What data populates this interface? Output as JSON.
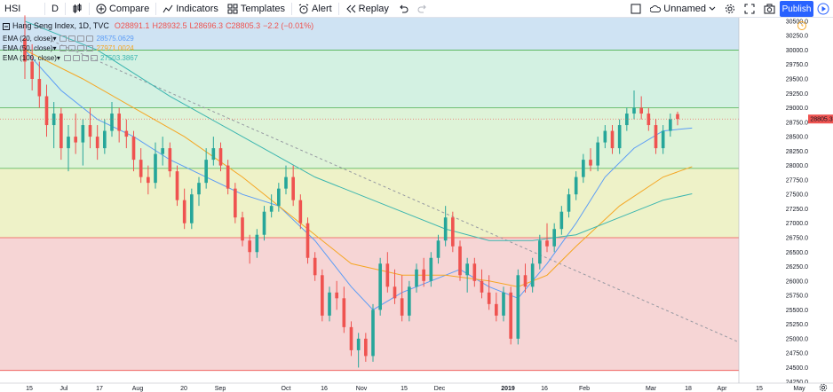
{
  "toolbar": {
    "symbol": "HSI",
    "interval": "D",
    "compare": "Compare",
    "indicators": "Indicators",
    "templates": "Templates",
    "alert": "Alert",
    "replay": "Replay",
    "layout_name": "Unnamed",
    "publish": "Publish"
  },
  "legend": {
    "title": "Hang Seng Index, 1D, TVC",
    "open": "O28891.1",
    "high": "H28932.5",
    "low": "L28696.3",
    "close": "C28805.3",
    "change": "−2.2 (−0.01%)",
    "change_color": "#ef5350",
    "indicators": [
      {
        "label": "EMA (20, close)",
        "value": "28575.0629",
        "color": "#5b9cf6"
      },
      {
        "label": "EMA (50, close)",
        "value": "27971.0024",
        "color": "#f5a623"
      },
      {
        "label": "EMA (100, close)",
        "value": "27503.3867",
        "color": "#3cb6b0"
      }
    ]
  },
  "price_axis": {
    "labels": [
      "30500.0",
      "30250.0",
      "30000.0",
      "29750.0",
      "29500.0",
      "29250.0",
      "29000.0",
      "28750.0",
      "28500.0",
      "28250.0",
      "28000.0",
      "27750.0",
      "27500.0",
      "27250.0",
      "27000.0",
      "26750.0",
      "26500.0",
      "26250.0",
      "26000.0",
      "25750.0",
      "25500.0",
      "25250.0",
      "25000.0",
      "24750.0",
      "24500.0",
      "24250.0"
    ],
    "current_price": "28805.3",
    "current_price_color": "#ef5350"
  },
  "time_axis": {
    "labels": [
      "15",
      "Jul",
      "17",
      "Aug",
      "20",
      "Sep",
      "Oct",
      "16",
      "Nov",
      "15",
      "Dec",
      "2019",
      "16",
      "Feb",
      "Mar",
      "18",
      "Apr",
      "15",
      "May"
    ]
  },
  "chart_data": {
    "type": "candlestick",
    "symbol": "HSI",
    "y_range": [
      24250,
      30700
    ],
    "zones": [
      {
        "from": 30000,
        "to": 30700,
        "color": "#cfe3f3"
      },
      {
        "from": 29000,
        "to": 30000,
        "color": "#d3f1e2"
      },
      {
        "from": 27950,
        "to": 29000,
        "color": "#def3d8"
      },
      {
        "from": 26750,
        "to": 27950,
        "color": "#eef2c8"
      },
      {
        "from": 24450,
        "to": 26750,
        "color": "#f6d5d5"
      }
    ],
    "candles": [
      {
        "o": 30200,
        "h": 30600,
        "l": 29500,
        "c": 29800
      },
      {
        "o": 29800,
        "h": 30100,
        "l": 29300,
        "c": 29500
      },
      {
        "o": 29500,
        "h": 29800,
        "l": 29000,
        "c": 29200
      },
      {
        "o": 29200,
        "h": 29400,
        "l": 28500,
        "c": 28700
      },
      {
        "o": 28700,
        "h": 29100,
        "l": 28300,
        "c": 28900
      },
      {
        "o": 28900,
        "h": 29000,
        "l": 28100,
        "c": 28300
      },
      {
        "o": 28300,
        "h": 28700,
        "l": 27900,
        "c": 28500
      },
      {
        "o": 28500,
        "h": 28900,
        "l": 28200,
        "c": 28400
      },
      {
        "o": 28400,
        "h": 28800,
        "l": 28000,
        "c": 28700
      },
      {
        "o": 28700,
        "h": 29000,
        "l": 28300,
        "c": 28500
      },
      {
        "o": 28500,
        "h": 28700,
        "l": 28100,
        "c": 28300
      },
      {
        "o": 28300,
        "h": 28800,
        "l": 28200,
        "c": 28600
      },
      {
        "o": 28600,
        "h": 29100,
        "l": 28500,
        "c": 28900
      },
      {
        "o": 28900,
        "h": 29000,
        "l": 28400,
        "c": 28600
      },
      {
        "o": 28600,
        "h": 28800,
        "l": 28300,
        "c": 28500
      },
      {
        "o": 28500,
        "h": 28600,
        "l": 27900,
        "c": 28100
      },
      {
        "o": 28100,
        "h": 28300,
        "l": 27700,
        "c": 27800
      },
      {
        "o": 27800,
        "h": 28000,
        "l": 27500,
        "c": 27700
      },
      {
        "o": 27700,
        "h": 28400,
        "l": 27600,
        "c": 28200
      },
      {
        "o": 28200,
        "h": 28500,
        "l": 28000,
        "c": 28300
      },
      {
        "o": 28300,
        "h": 28400,
        "l": 27800,
        "c": 27900
      },
      {
        "o": 27900,
        "h": 28000,
        "l": 27300,
        "c": 27400
      },
      {
        "o": 27400,
        "h": 27600,
        "l": 26900,
        "c": 27000
      },
      {
        "o": 27000,
        "h": 27600,
        "l": 26900,
        "c": 27500
      },
      {
        "o": 27500,
        "h": 27800,
        "l": 27300,
        "c": 27700
      },
      {
        "o": 27700,
        "h": 28300,
        "l": 27600,
        "c": 28100
      },
      {
        "o": 28100,
        "h": 28500,
        "l": 28000,
        "c": 28300
      },
      {
        "o": 28300,
        "h": 28400,
        "l": 27900,
        "c": 28000
      },
      {
        "o": 28000,
        "h": 28100,
        "l": 27500,
        "c": 27600
      },
      {
        "o": 27600,
        "h": 27700,
        "l": 27000,
        "c": 27100
      },
      {
        "o": 27100,
        "h": 27200,
        "l": 26600,
        "c": 26700
      },
      {
        "o": 26700,
        "h": 26800,
        "l": 26300,
        "c": 26500
      },
      {
        "o": 26500,
        "h": 26900,
        "l": 26400,
        "c": 26800
      },
      {
        "o": 26800,
        "h": 27300,
        "l": 26700,
        "c": 27200
      },
      {
        "o": 27200,
        "h": 27500,
        "l": 27100,
        "c": 27300
      },
      {
        "o": 27300,
        "h": 27700,
        "l": 27200,
        "c": 27600
      },
      {
        "o": 27600,
        "h": 28000,
        "l": 27500,
        "c": 27800
      },
      {
        "o": 27800,
        "h": 28000,
        "l": 27300,
        "c": 27400
      },
      {
        "o": 27400,
        "h": 27500,
        "l": 26900,
        "c": 27000
      },
      {
        "o": 27000,
        "h": 27100,
        "l": 26300,
        "c": 26400
      },
      {
        "o": 26400,
        "h": 26500,
        "l": 26000,
        "c": 26100
      },
      {
        "o": 26100,
        "h": 26200,
        "l": 25300,
        "c": 25400
      },
      {
        "o": 25400,
        "h": 25900,
        "l": 25300,
        "c": 25800
      },
      {
        "o": 25800,
        "h": 26000,
        "l": 25500,
        "c": 25700
      },
      {
        "o": 25700,
        "h": 25900,
        "l": 25100,
        "c": 25200
      },
      {
        "o": 25200,
        "h": 25300,
        "l": 24700,
        "c": 24800
      },
      {
        "o": 24800,
        "h": 25100,
        "l": 24500,
        "c": 25000
      },
      {
        "o": 25000,
        "h": 25100,
        "l": 24600,
        "c": 24700
      },
      {
        "o": 24700,
        "h": 25600,
        "l": 24600,
        "c": 25500
      },
      {
        "o": 25500,
        "h": 26400,
        "l": 25400,
        "c": 26300
      },
      {
        "o": 26300,
        "h": 26500,
        "l": 25800,
        "c": 25900
      },
      {
        "o": 25900,
        "h": 26200,
        "l": 25600,
        "c": 25700
      },
      {
        "o": 25700,
        "h": 26100,
        "l": 25300,
        "c": 25400
      },
      {
        "o": 25400,
        "h": 26000,
        "l": 25300,
        "c": 25900
      },
      {
        "o": 25900,
        "h": 26300,
        "l": 25800,
        "c": 26200
      },
      {
        "o": 26200,
        "h": 26400,
        "l": 25900,
        "c": 26000
      },
      {
        "o": 26000,
        "h": 26500,
        "l": 25900,
        "c": 26400
      },
      {
        "o": 26400,
        "h": 26800,
        "l": 26300,
        "c": 26700
      },
      {
        "o": 26700,
        "h": 27300,
        "l": 26600,
        "c": 27100
      },
      {
        "o": 27100,
        "h": 27200,
        "l": 26500,
        "c": 26600
      },
      {
        "o": 26600,
        "h": 26700,
        "l": 26000,
        "c": 26100
      },
      {
        "o": 26100,
        "h": 26400,
        "l": 25800,
        "c": 26300
      },
      {
        "o": 26300,
        "h": 26400,
        "l": 25900,
        "c": 26000
      },
      {
        "o": 26000,
        "h": 26200,
        "l": 25700,
        "c": 25800
      },
      {
        "o": 25800,
        "h": 26100,
        "l": 25500,
        "c": 25600
      },
      {
        "o": 25600,
        "h": 25800,
        "l": 25300,
        "c": 25400
      },
      {
        "o": 25400,
        "h": 25900,
        "l": 25300,
        "c": 25800
      },
      {
        "o": 25800,
        "h": 25900,
        "l": 24900,
        "c": 25000
      },
      {
        "o": 25000,
        "h": 26200,
        "l": 24900,
        "c": 26100
      },
      {
        "o": 26100,
        "h": 26300,
        "l": 25800,
        "c": 25900
      },
      {
        "o": 25900,
        "h": 26400,
        "l": 25800,
        "c": 26300
      },
      {
        "o": 26300,
        "h": 26800,
        "l": 26200,
        "c": 26700
      },
      {
        "o": 26700,
        "h": 27000,
        "l": 26500,
        "c": 26600
      },
      {
        "o": 26600,
        "h": 27000,
        "l": 26500,
        "c": 26900
      },
      {
        "o": 26900,
        "h": 27300,
        "l": 26800,
        "c": 27200
      },
      {
        "o": 27200,
        "h": 27600,
        "l": 27100,
        "c": 27500
      },
      {
        "o": 27500,
        "h": 27900,
        "l": 27400,
        "c": 27800
      },
      {
        "o": 27800,
        "h": 28200,
        "l": 27700,
        "c": 28100
      },
      {
        "o": 28100,
        "h": 28300,
        "l": 27900,
        "c": 28000
      },
      {
        "o": 28000,
        "h": 28500,
        "l": 27900,
        "c": 28400
      },
      {
        "o": 28400,
        "h": 28700,
        "l": 28300,
        "c": 28600
      },
      {
        "o": 28600,
        "h": 28700,
        "l": 28200,
        "c": 28300
      },
      {
        "o": 28300,
        "h": 28800,
        "l": 28200,
        "c": 28700
      },
      {
        "o": 28700,
        "h": 29000,
        "l": 28600,
        "c": 28900
      },
      {
        "o": 28900,
        "h": 29300,
        "l": 28800,
        "c": 29000
      },
      {
        "o": 29000,
        "h": 29200,
        "l": 28800,
        "c": 28900
      },
      {
        "o": 28900,
        "h": 29000,
        "l": 28600,
        "c": 28700
      },
      {
        "o": 28700,
        "h": 28800,
        "l": 28200,
        "c": 28300
      },
      {
        "o": 28300,
        "h": 28700,
        "l": 28200,
        "c": 28600
      },
      {
        "o": 28600,
        "h": 28900,
        "l": 28500,
        "c": 28800
      },
      {
        "o": 28891.1,
        "h": 28932.5,
        "l": 28696.3,
        "c": 28805.3
      }
    ],
    "ema": [
      {
        "name": "EMA (20, close)",
        "color": "#5b9cf6",
        "points": [
          [
            0,
            30000
          ],
          [
            5,
            29300
          ],
          [
            10,
            28800
          ],
          [
            15,
            28500
          ],
          [
            20,
            28100
          ],
          [
            25,
            27800
          ],
          [
            30,
            27500
          ],
          [
            35,
            27300
          ],
          [
            40,
            26700
          ],
          [
            45,
            25900
          ],
          [
            48,
            25500
          ],
          [
            52,
            25800
          ],
          [
            56,
            26000
          ],
          [
            60,
            26200
          ],
          [
            64,
            25900
          ],
          [
            68,
            25700
          ],
          [
            72,
            26300
          ],
          [
            76,
            27000
          ],
          [
            80,
            27800
          ],
          [
            84,
            28300
          ],
          [
            88,
            28600
          ],
          [
            92,
            28650
          ]
        ]
      },
      {
        "name": "EMA (50, close)",
        "color": "#f5a623",
        "points": [
          [
            0,
            30000
          ],
          [
            8,
            29500
          ],
          [
            15,
            29000
          ],
          [
            22,
            28500
          ],
          [
            30,
            27800
          ],
          [
            38,
            27000
          ],
          [
            45,
            26300
          ],
          [
            52,
            26100
          ],
          [
            58,
            26100
          ],
          [
            64,
            26000
          ],
          [
            68,
            25900
          ],
          [
            72,
            26100
          ],
          [
            76,
            26600
          ],
          [
            82,
            27300
          ],
          [
            88,
            27800
          ],
          [
            92,
            27980
          ]
        ]
      },
      {
        "name": "EMA (100, close)",
        "color": "#3cb6b0",
        "points": [
          [
            0,
            30500
          ],
          [
            10,
            30000
          ],
          [
            20,
            29200
          ],
          [
            30,
            28500
          ],
          [
            40,
            27800
          ],
          [
            50,
            27300
          ],
          [
            58,
            26900
          ],
          [
            64,
            26700
          ],
          [
            70,
            26700
          ],
          [
            76,
            26800
          ],
          [
            82,
            27100
          ],
          [
            88,
            27400
          ],
          [
            92,
            27510
          ]
        ]
      }
    ],
    "trendline": {
      "from": [
        3,
        30200
      ],
      "to": [
        99,
        24450
      ],
      "style": "dashed",
      "color": "#9598a1"
    },
    "price_line": 28805.3
  }
}
